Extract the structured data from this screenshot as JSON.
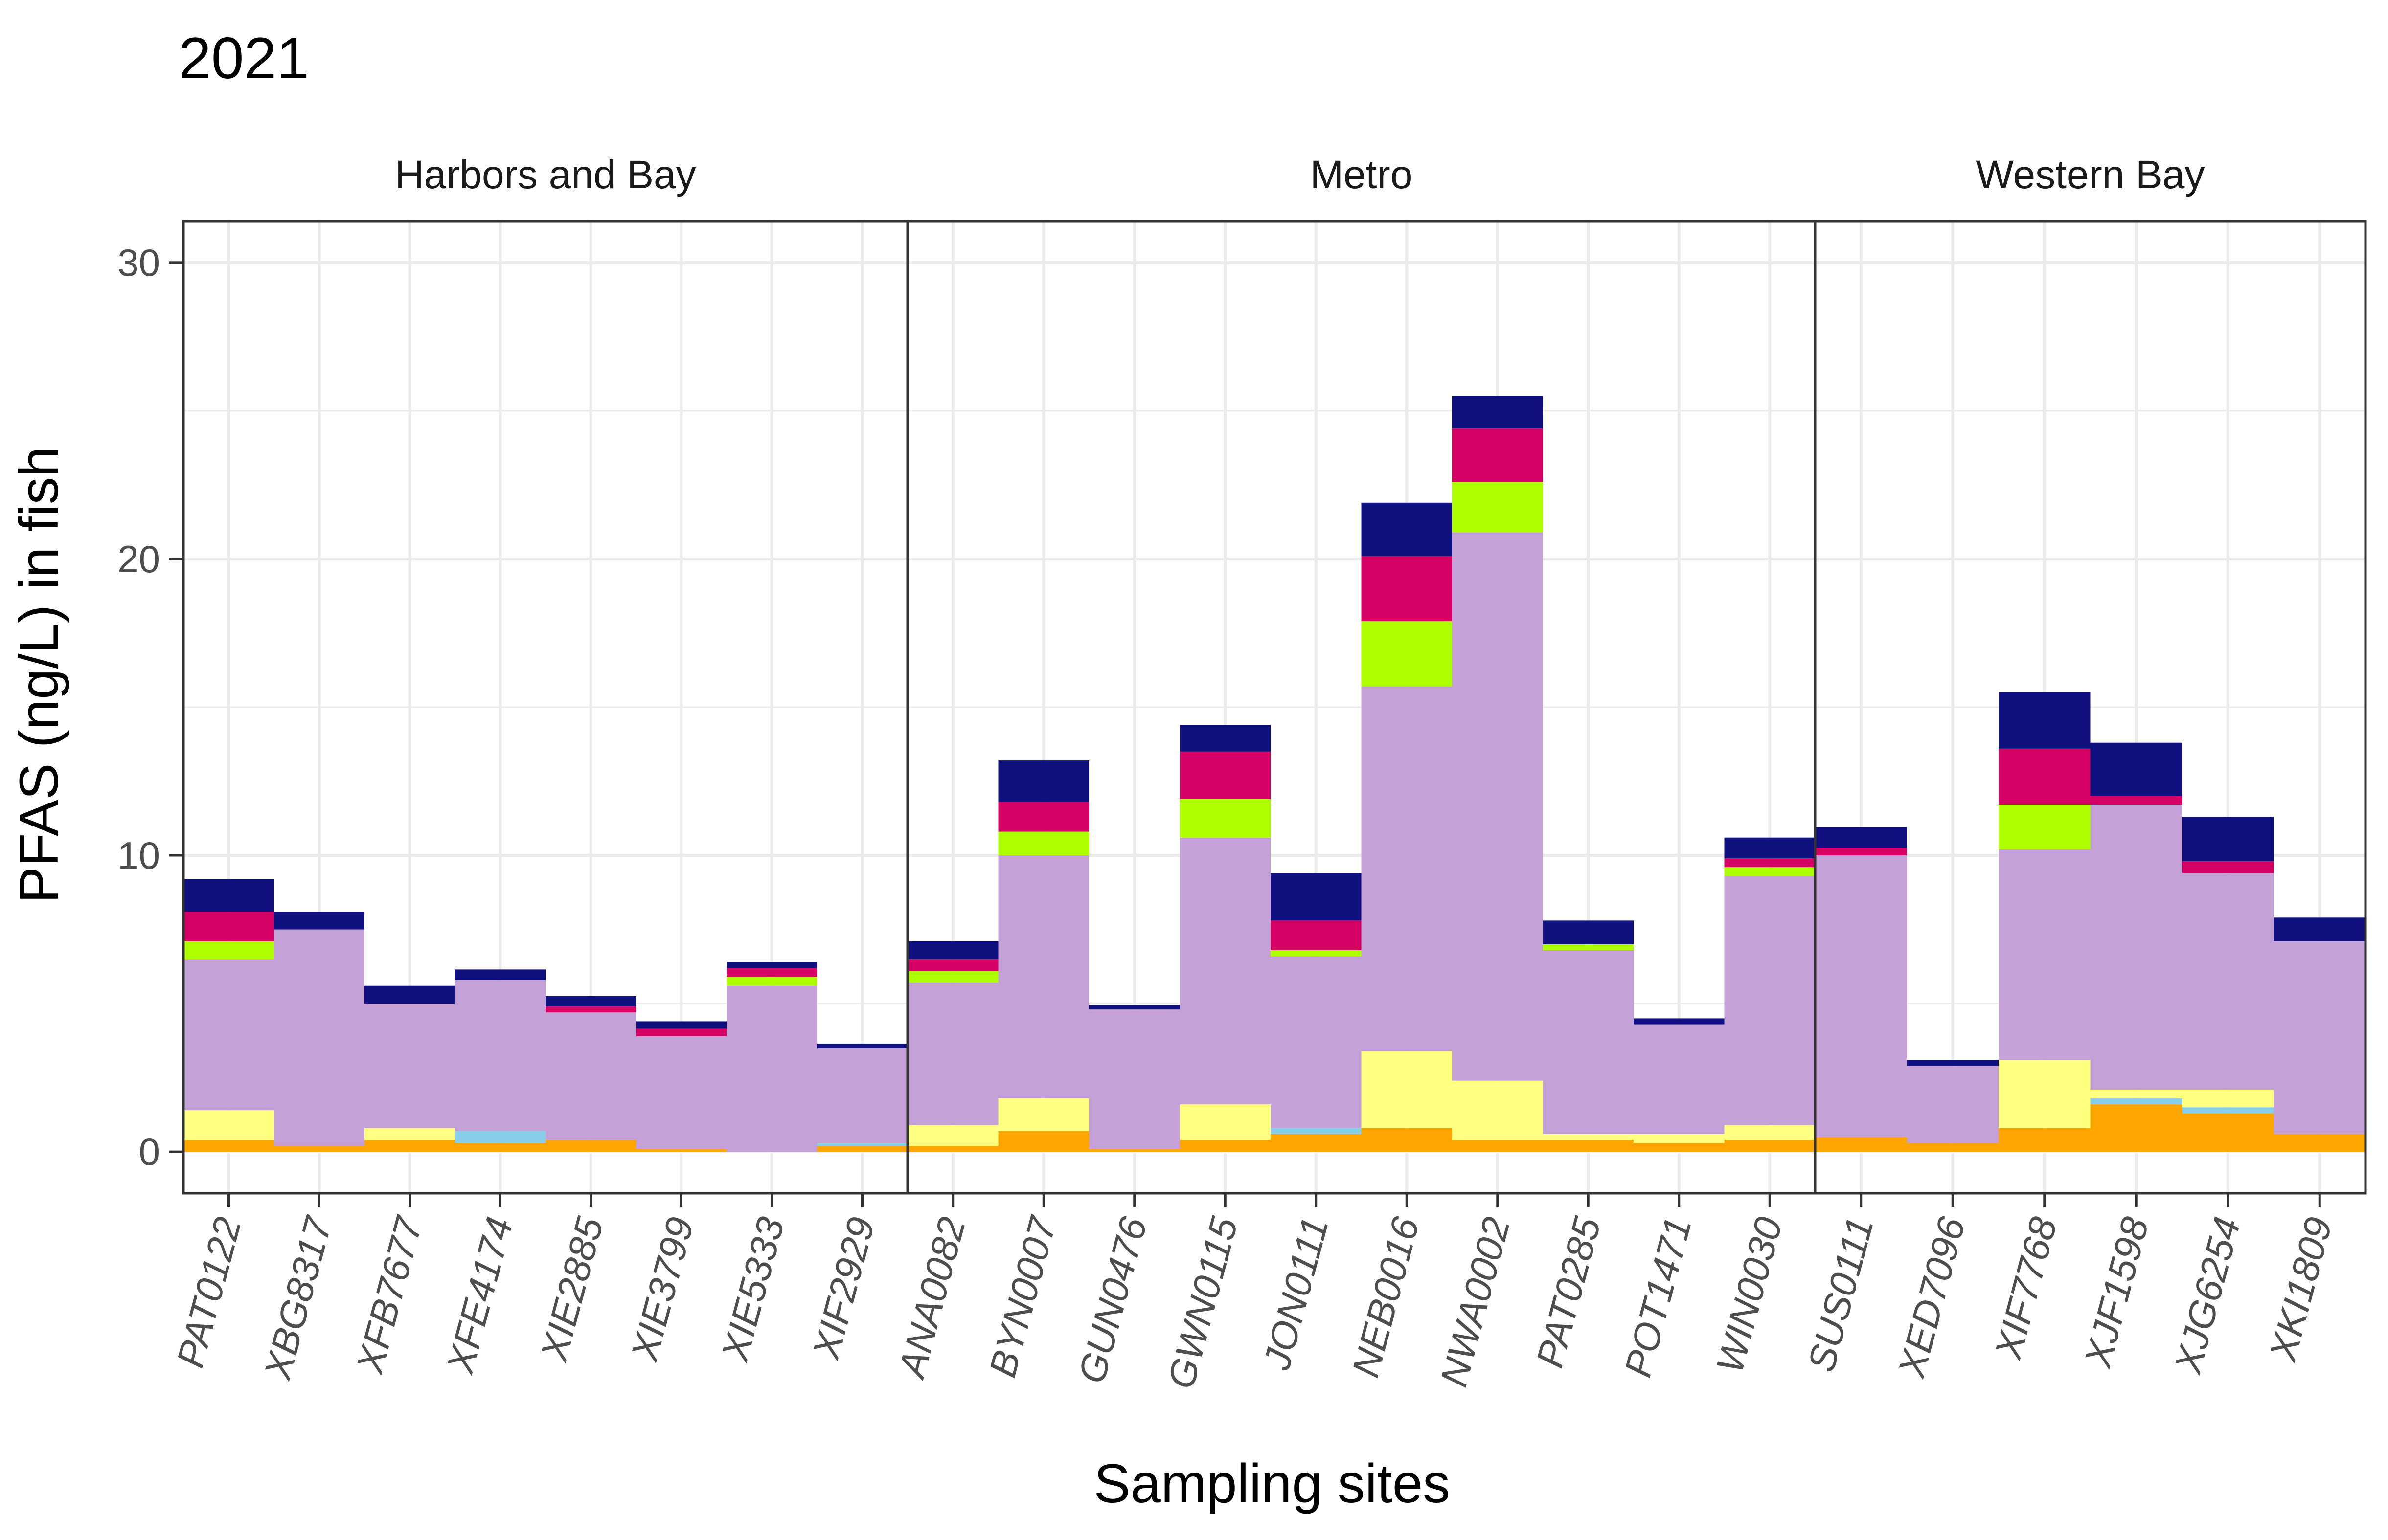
{
  "chart_data": {
    "type": "bar",
    "title": "2021",
    "xlabel": "Sampling sites",
    "ylabel": "PFAS (ng/L) in fish",
    "ylim": [
      -1.4,
      31.4
    ],
    "yticks": [
      0,
      10,
      20,
      30
    ],
    "grid": true,
    "stacked": true,
    "component_colors": [
      "#FFA500",
      "#87CEEB",
      "#FFFF80",
      "#C3A0D6",
      "#ADFF00",
      "#D40063",
      "#101080"
    ],
    "panels": [
      {
        "label": "Harbors and Bay",
        "categories": [
          "PAT0122",
          "XBG8317",
          "XFB7677",
          "XFE4174",
          "XIE2885",
          "XIE3799",
          "XIE5333",
          "XIF2929"
        ],
        "stacks": [
          [
            0.4,
            0,
            1.0,
            5.1,
            0.6,
            1.0,
            1.1
          ],
          [
            0.2,
            0,
            0,
            7.3,
            0,
            0,
            0.6
          ],
          [
            0.4,
            0,
            0.4,
            4.2,
            0,
            0,
            0.6
          ],
          [
            0.3,
            0.4,
            0,
            5.1,
            0,
            0,
            0.35
          ],
          [
            0.4,
            0,
            0,
            4.3,
            0,
            0.2,
            0.35
          ],
          [
            0.1,
            0,
            0,
            3.8,
            0,
            0.25,
            0.25
          ],
          [
            0,
            0,
            0,
            5.6,
            0.3,
            0.3,
            0.2
          ],
          [
            0.2,
            0.1,
            0,
            3.2,
            0,
            0,
            0.15
          ]
        ]
      },
      {
        "label": "Metro",
        "categories": [
          "ANA0082",
          "BYN0007",
          "GUN0476",
          "GWN0115",
          "JON0111",
          "NEB0016",
          "NWA0002",
          "PAT0285",
          "POT1471",
          "WIN0030"
        ],
        "stacks": [
          [
            0.2,
            0,
            0.7,
            4.8,
            0.4,
            0.4,
            0.6
          ],
          [
            0.7,
            0,
            1.1,
            8.2,
            0.8,
            1.0,
            1.4
          ],
          [
            0.1,
            0,
            0,
            4.7,
            0,
            0,
            0.15
          ],
          [
            0.4,
            0,
            1.2,
            9.0,
            1.3,
            1.6,
            0.9
          ],
          [
            0.6,
            0.2,
            0,
            5.8,
            0.2,
            1.0,
            1.6
          ],
          [
            0.8,
            0,
            2.6,
            12.3,
            2.2,
            2.2,
            1.8
          ],
          [
            0.4,
            0,
            2.0,
            18.5,
            1.7,
            1.8,
            1.1
          ],
          [
            0.4,
            0,
            0.2,
            6.2,
            0.2,
            0,
            0.8
          ],
          [
            0.3,
            0,
            0.3,
            3.7,
            0,
            0,
            0.2
          ],
          [
            0.4,
            0,
            0.5,
            8.4,
            0.3,
            0.3,
            0.7
          ]
        ]
      },
      {
        "label": "Western Bay",
        "categories": [
          "SUS0111",
          "XED7096",
          "XIF7768",
          "XJF1598",
          "XJG6254",
          "XKI1809"
        ],
        "stacks": [
          [
            0.5,
            0,
            0,
            9.5,
            0,
            0.25,
            0.7
          ],
          [
            0.3,
            0,
            0,
            2.6,
            0,
            0,
            0.2
          ],
          [
            0.8,
            0,
            2.3,
            7.1,
            1.5,
            1.9,
            1.9
          ],
          [
            1.6,
            0.2,
            0.3,
            9.6,
            0,
            0.3,
            1.8
          ],
          [
            1.3,
            0.2,
            0.6,
            7.3,
            0,
            0.4,
            1.5
          ],
          [
            0.6,
            0,
            0,
            6.5,
            0,
            0,
            0.8
          ]
        ]
      }
    ]
  }
}
